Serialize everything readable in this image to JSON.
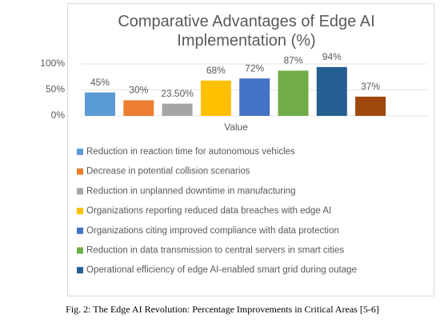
{
  "chart_data": {
    "type": "bar",
    "title": "Comparative Advantages of Edge AI Implementation (%)",
    "x_label": "Value",
    "ylim": [
      0,
      100
    ],
    "yticks": [
      {
        "value": 0,
        "label": "0%"
      },
      {
        "value": 50,
        "label": "50%"
      },
      {
        "value": 100,
        "label": "100%"
      }
    ],
    "grid": true,
    "legend": "bottom",
    "series": [
      {
        "name": "Reduction in reaction time for autonomous vehicles",
        "color": "#5b9bd5",
        "values": [
          45
        ],
        "value_labels": [
          "45%"
        ]
      },
      {
        "name": "Decrease in potential collision scenarios",
        "color": "#ed7d31",
        "values": [
          30
        ],
        "value_labels": [
          "30%"
        ]
      },
      {
        "name": "Reduction in unplanned downtime in manufacturing",
        "color": "#a5a5a5",
        "values": [
          23.5
        ],
        "value_labels": [
          "23.50%"
        ]
      },
      {
        "name": "Organizations reporting reduced data breaches with edge AI",
        "color": "#ffc000",
        "values": [
          68
        ],
        "value_labels": [
          "68%"
        ]
      },
      {
        "name": "Organizations citing improved compliance with data protection",
        "color": "#4472c4",
        "values": [
          72
        ],
        "value_labels": [
          "72%"
        ]
      },
      {
        "name": "Reduction in data transmission to central servers in smart cities",
        "color": "#70ad47",
        "values": [
          87
        ],
        "value_labels": [
          "87%"
        ]
      },
      {
        "name": "Operational efficiency of edge AI-enabled smart grid during outage",
        "color": "#255e91",
        "values": [
          94
        ],
        "value_labels": [
          "94%"
        ]
      },
      {
        "name": null,
        "color": "#9e480e",
        "values": [
          37
        ],
        "value_labels": [
          "37%"
        ]
      }
    ]
  },
  "caption": "Fig. 2: The Edge AI Revolution: Percentage Improvements in Critical Areas [5-6]"
}
